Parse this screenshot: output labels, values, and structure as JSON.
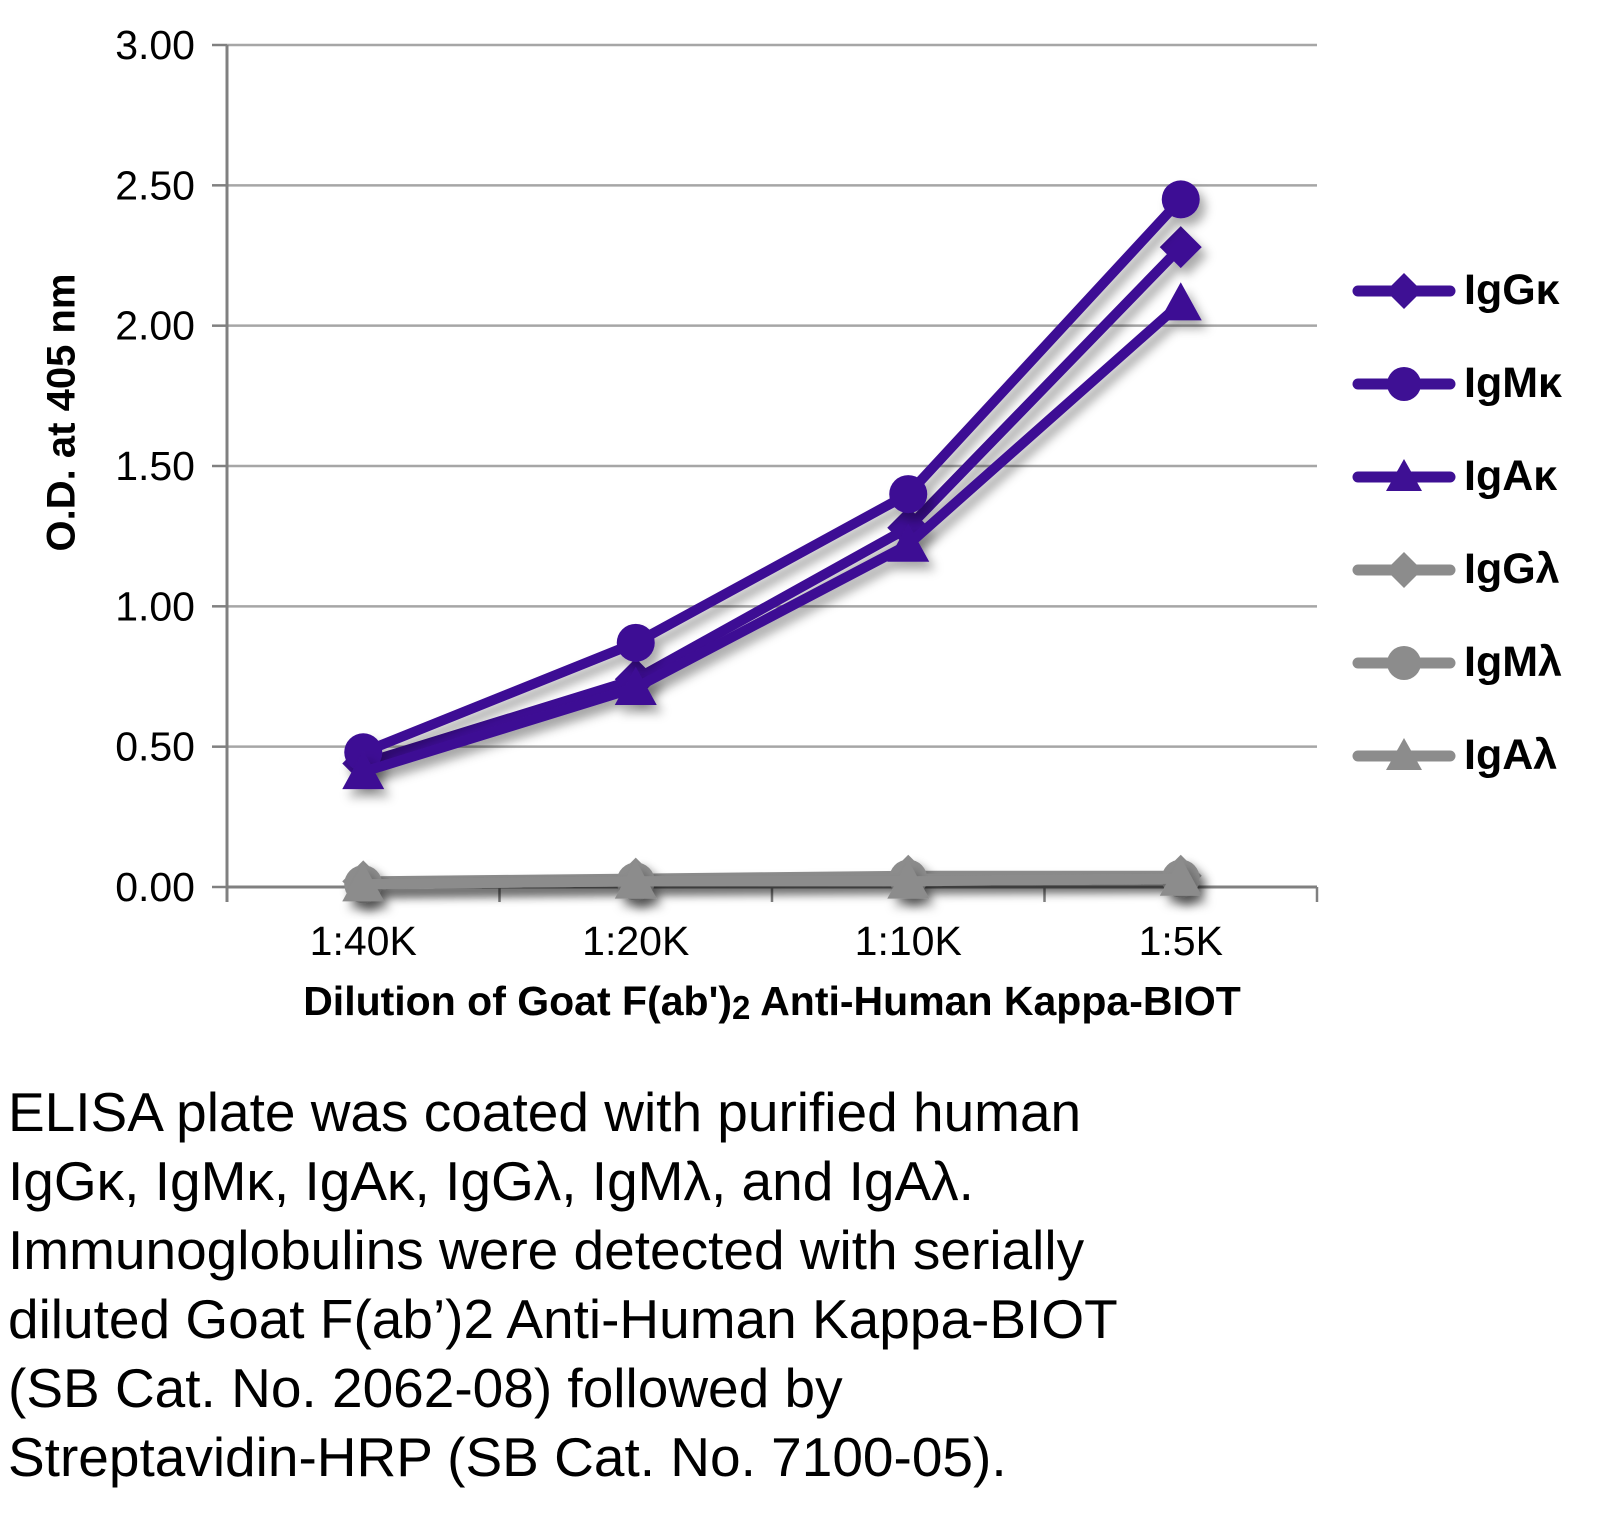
{
  "chart_data": {
    "type": "line",
    "title": "",
    "xlabel_pre": "Dilution of Goat F(ab')",
    "xlabel_sub": "2",
    "xlabel_post": " Anti-Human Kappa-BIOT",
    "ylabel": "O.D. at 405 nm",
    "categories": [
      "1:40K",
      "1:20K",
      "1:10K",
      "1:5K"
    ],
    "ylim": [
      0,
      3
    ],
    "ytick_step": 0.5,
    "ytick_labels": [
      "0.00",
      "0.50",
      "1.00",
      "1.50",
      "2.00",
      "2.50",
      "3.00"
    ],
    "grid": "horizontal",
    "legend_position": "right",
    "colors": {
      "purple_series": "#3E1094",
      "gray_series": "#8C8C8C",
      "gridline": "#A6A6A6",
      "axis": "#808080",
      "text": "#000000"
    },
    "series": [
      {
        "name": "IgGκ",
        "marker": "diamond",
        "color": "#3E1094",
        "values": [
          0.44,
          0.74,
          1.28,
          2.28
        ]
      },
      {
        "name": "IgMκ",
        "marker": "circle",
        "color": "#3E1094",
        "values": [
          0.48,
          0.87,
          1.4,
          2.45
        ]
      },
      {
        "name": "IgAκ",
        "marker": "triangle",
        "color": "#3E1094",
        "values": [
          0.41,
          0.71,
          1.22,
          2.08
        ]
      },
      {
        "name": "IgGλ",
        "marker": "diamond",
        "color": "#8C8C8C",
        "values": [
          0.02,
          0.03,
          0.04,
          0.04
        ]
      },
      {
        "name": "IgMλ",
        "marker": "circle",
        "color": "#8C8C8C",
        "values": [
          0.01,
          0.02,
          0.03,
          0.03
        ]
      },
      {
        "name": "IgAλ",
        "marker": "triangle",
        "color": "#8C8C8C",
        "values": [
          0.01,
          0.02,
          0.02,
          0.03
        ]
      }
    ]
  },
  "caption": {
    "lines": [
      "ELISA plate was coated with purified human",
      "IgGκ, IgMκ, IgAκ, IgGλ, IgMλ, and IgAλ.",
      "Immunoglobulins were detected with serially",
      "diluted Goat F(ab’)2 Anti-Human Kappa-BIOT",
      "(SB Cat. No. 2062-08) followed by",
      "Streptavidin-HRP (SB Cat. No. 7100-05)."
    ]
  }
}
